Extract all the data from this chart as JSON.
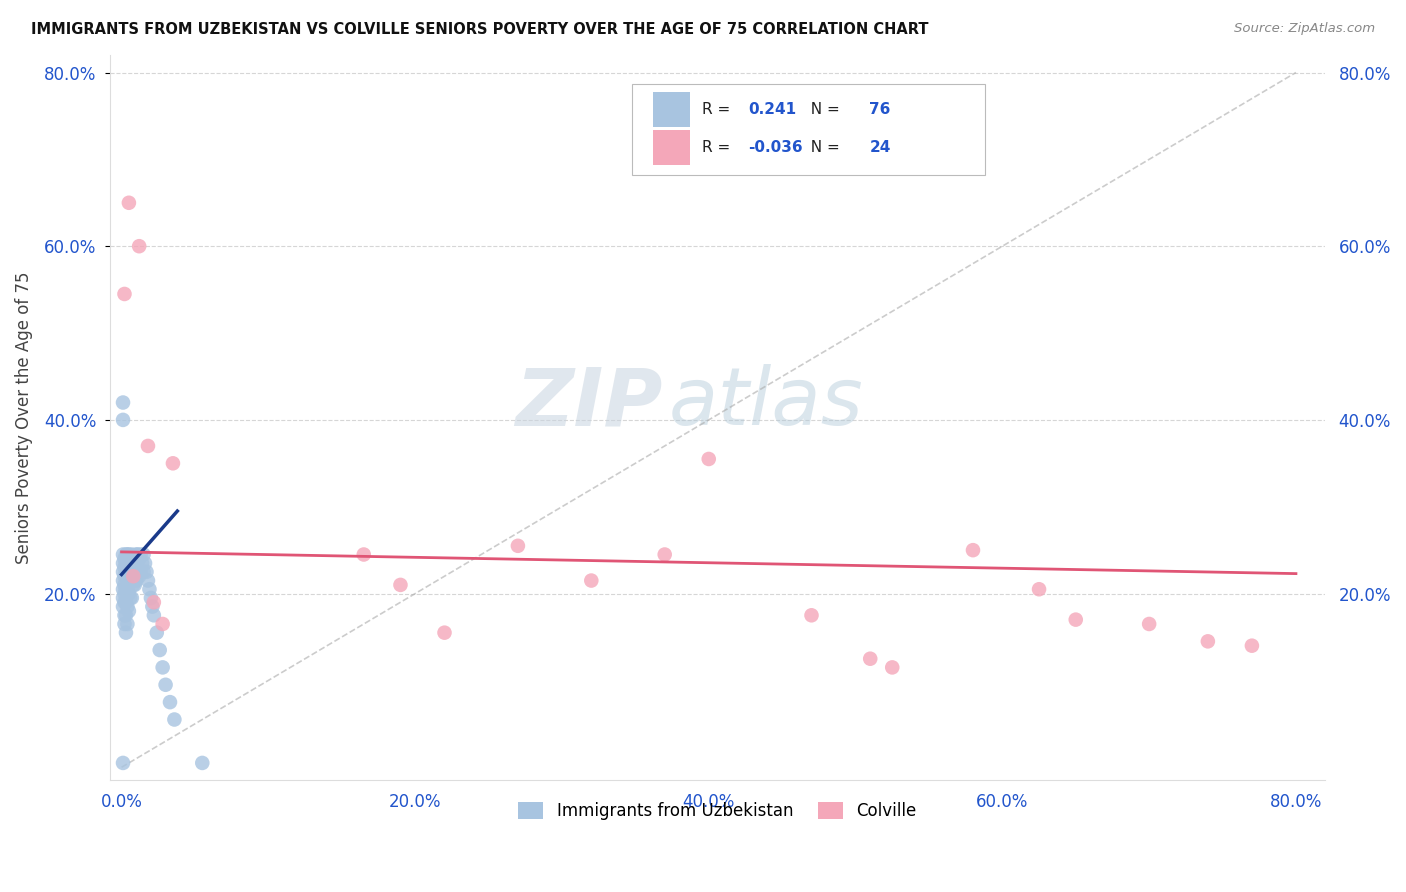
{
  "title": "IMMIGRANTS FROM UZBEKISTAN VS COLVILLE SENIORS POVERTY OVER THE AGE OF 75 CORRELATION CHART",
  "source": "Source: ZipAtlas.com",
  "ylabel": "Seniors Poverty Over the Age of 75",
  "xlim": [
    0.0,
    0.8
  ],
  "ylim": [
    0.0,
    0.8
  ],
  "xticks": [
    0.0,
    0.2,
    0.4,
    0.6,
    0.8
  ],
  "yticks": [
    0.2,
    0.4,
    0.6,
    0.8
  ],
  "xtick_labels": [
    "0.0%",
    "20.0%",
    "40.0%",
    "60.0%",
    "80.0%"
  ],
  "ytick_labels": [
    "20.0%",
    "40.0%",
    "60.0%",
    "80.0%"
  ],
  "blue_R": 0.241,
  "blue_N": 76,
  "pink_R": -0.036,
  "pink_N": 24,
  "blue_color": "#a8c4e0",
  "pink_color": "#f4a7b9",
  "blue_line_color": "#1a3a8a",
  "pink_line_color": "#e05575",
  "watermark_zip": "ZIP",
  "watermark_atlas": "atlas",
  "legend_labels": [
    "Immigrants from Uzbekistan",
    "Colville"
  ],
  "blue_x": [
    0.001,
    0.001,
    0.001,
    0.001,
    0.001,
    0.001,
    0.001,
    0.001,
    0.002,
    0.002,
    0.002,
    0.002,
    0.002,
    0.002,
    0.002,
    0.002,
    0.003,
    0.003,
    0.003,
    0.003,
    0.003,
    0.003,
    0.003,
    0.004,
    0.004,
    0.004,
    0.004,
    0.004,
    0.004,
    0.005,
    0.005,
    0.005,
    0.005,
    0.005,
    0.006,
    0.006,
    0.006,
    0.006,
    0.007,
    0.007,
    0.007,
    0.007,
    0.008,
    0.008,
    0.008,
    0.009,
    0.009,
    0.009,
    0.01,
    0.01,
    0.01,
    0.011,
    0.011,
    0.012,
    0.012,
    0.013,
    0.013,
    0.014,
    0.015,
    0.015,
    0.016,
    0.017,
    0.018,
    0.019,
    0.02,
    0.021,
    0.022,
    0.024,
    0.026,
    0.028,
    0.03,
    0.033,
    0.036,
    0.001,
    0.001,
    0.055
  ],
  "blue_y": [
    0.245,
    0.235,
    0.225,
    0.215,
    0.205,
    0.195,
    0.185,
    0.005,
    0.24,
    0.23,
    0.22,
    0.21,
    0.2,
    0.19,
    0.175,
    0.165,
    0.245,
    0.235,
    0.22,
    0.205,
    0.19,
    0.175,
    0.155,
    0.245,
    0.235,
    0.22,
    0.205,
    0.185,
    0.165,
    0.245,
    0.235,
    0.22,
    0.2,
    0.18,
    0.24,
    0.23,
    0.215,
    0.195,
    0.245,
    0.235,
    0.215,
    0.195,
    0.24,
    0.23,
    0.21,
    0.24,
    0.23,
    0.21,
    0.245,
    0.235,
    0.215,
    0.245,
    0.225,
    0.24,
    0.22,
    0.245,
    0.225,
    0.235,
    0.245,
    0.225,
    0.235,
    0.225,
    0.215,
    0.205,
    0.195,
    0.185,
    0.175,
    0.155,
    0.135,
    0.115,
    0.095,
    0.075,
    0.055,
    0.42,
    0.4,
    0.005
  ],
  "pink_x": [
    0.002,
    0.005,
    0.008,
    0.012,
    0.018,
    0.022,
    0.028,
    0.035,
    0.165,
    0.19,
    0.22,
    0.27,
    0.32,
    0.37,
    0.4,
    0.47,
    0.51,
    0.525,
    0.58,
    0.625,
    0.65,
    0.7,
    0.74,
    0.77
  ],
  "pink_y": [
    0.545,
    0.65,
    0.22,
    0.6,
    0.37,
    0.19,
    0.165,
    0.35,
    0.245,
    0.21,
    0.155,
    0.255,
    0.215,
    0.245,
    0.355,
    0.175,
    0.125,
    0.115,
    0.25,
    0.205,
    0.17,
    0.165,
    0.145,
    0.14
  ],
  "pink_line_y0": 0.248,
  "pink_line_y1": 0.223,
  "blue_line_x0": 0.0,
  "blue_line_y0": 0.222,
  "blue_line_x1": 0.038,
  "blue_line_y1": 0.295
}
